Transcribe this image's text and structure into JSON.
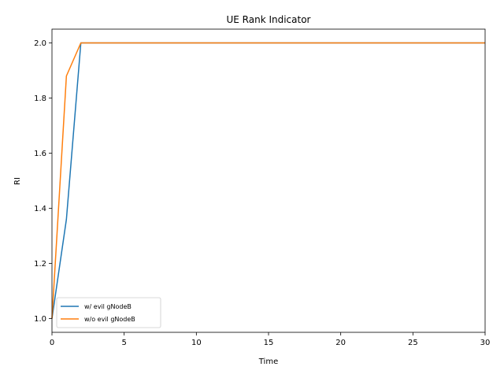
{
  "chart_data": {
    "type": "line",
    "title": "UE Rank Indicator",
    "xlabel": "Time",
    "ylabel": "RI",
    "xlim": [
      0,
      30
    ],
    "ylim": [
      0.95,
      2.05
    ],
    "xticks": [
      0,
      5,
      10,
      15,
      20,
      25,
      30
    ],
    "yticks": [
      1.0,
      1.2,
      1.4,
      1.6,
      1.8,
      2.0
    ],
    "xtick_labels": [
      "0",
      "5",
      "10",
      "15",
      "20",
      "25",
      "30"
    ],
    "ytick_labels": [
      "1.0",
      "1.2",
      "1.4",
      "1.6",
      "1.8",
      "2.0"
    ],
    "grid": false,
    "legend_position": "bottom-left",
    "series": [
      {
        "name": "w/ evil gNodeB",
        "color": "#1f77b4",
        "x": [
          0,
          1,
          2,
          3,
          30
        ],
        "y": [
          1.0,
          1.36,
          2.0,
          2.0,
          2.0
        ]
      },
      {
        "name": "w/o evil gNodeB",
        "color": "#ff7f0e",
        "x": [
          0,
          1,
          2,
          3,
          30
        ],
        "y": [
          1.0,
          1.88,
          2.0,
          2.0,
          2.0
        ]
      }
    ]
  }
}
